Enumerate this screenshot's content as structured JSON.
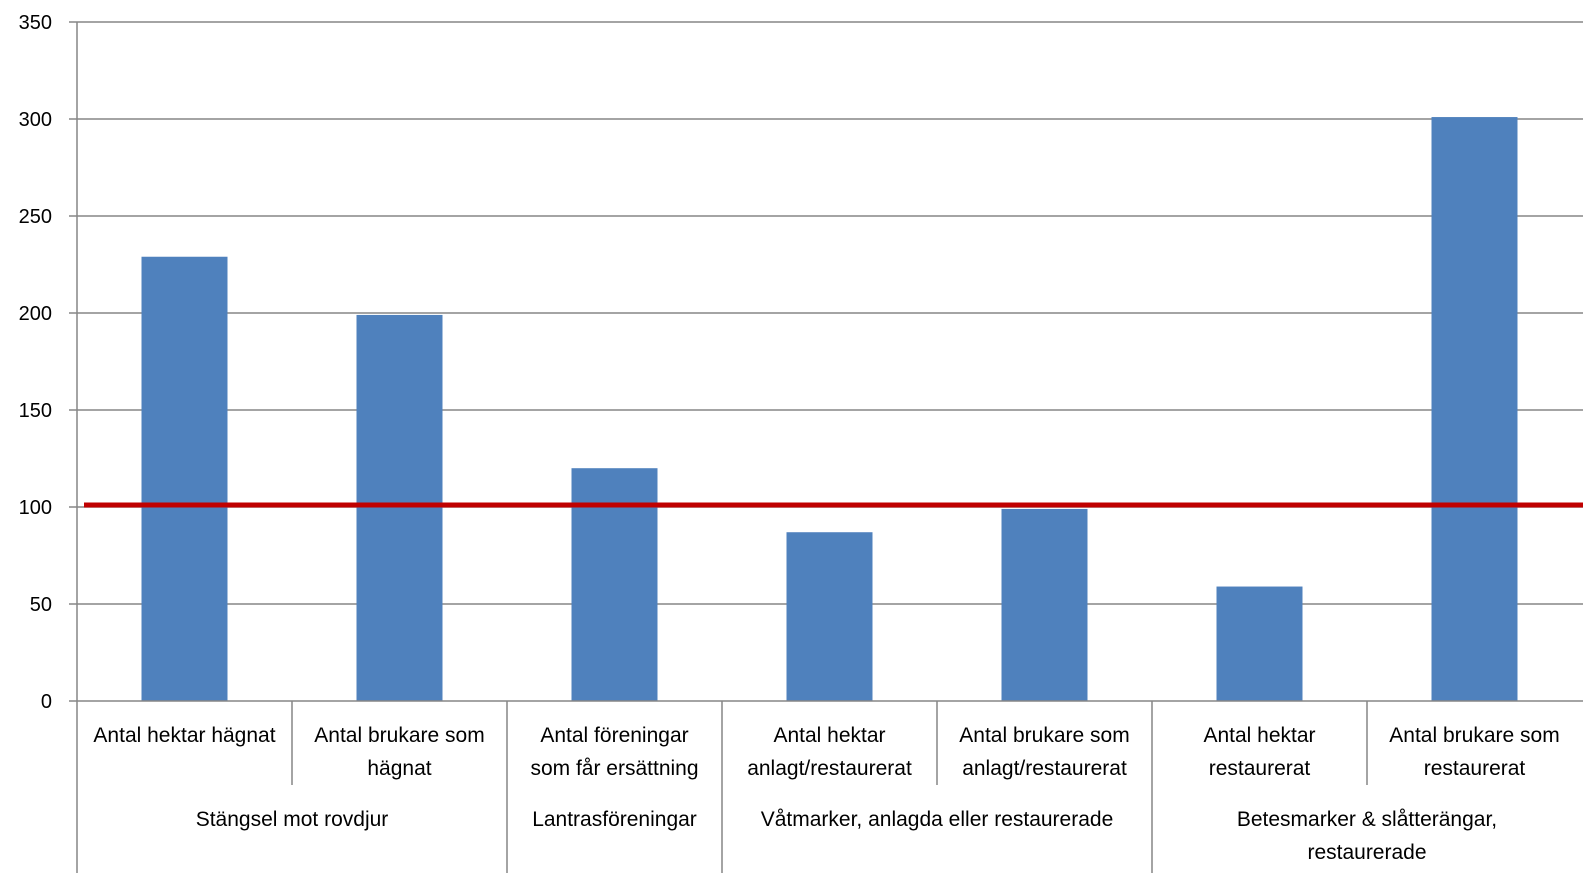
{
  "chart_data": {
    "type": "bar",
    "title": "",
    "xlabel": "",
    "ylabel": "",
    "ylim": [
      0,
      350
    ],
    "yticks": [
      "0",
      "50",
      "100",
      "150",
      "200",
      "250",
      "300",
      "350"
    ],
    "grid": true,
    "legend": "none",
    "categories": [
      [
        "Antal hektar hägnat"
      ],
      [
        "Antal brukare som",
        "hägnat"
      ],
      [
        "Antal föreningar",
        "som får ersättning"
      ],
      [
        "Antal hektar",
        "anlagt/restaurerat"
      ],
      [
        "Antal brukare som",
        "anlagt/restaurerat"
      ],
      [
        "Antal hektar",
        "restaurerat"
      ],
      [
        "Antal brukare som",
        "restaurerat"
      ]
    ],
    "groups": [
      {
        "label": [
          "Stängsel mot rovdjur"
        ],
        "span": [
          0,
          1
        ]
      },
      {
        "label": [
          "Lantrasföreningar"
        ],
        "span": [
          2,
          2
        ]
      },
      {
        "label": [
          "Våtmarker, anlagda eller restaurerade"
        ],
        "span": [
          3,
          4
        ]
      },
      {
        "label": [
          "Betesmarker & slåtterängar,",
          "restaurerade"
        ],
        "span": [
          5,
          6
        ]
      }
    ],
    "values": [
      229,
      199,
      120,
      87,
      99,
      59,
      301
    ],
    "reference_line": 101,
    "colors": {
      "bar": "#4f81bd",
      "reference": "#c00000",
      "grid": "#868686",
      "axis": "#868686"
    }
  }
}
